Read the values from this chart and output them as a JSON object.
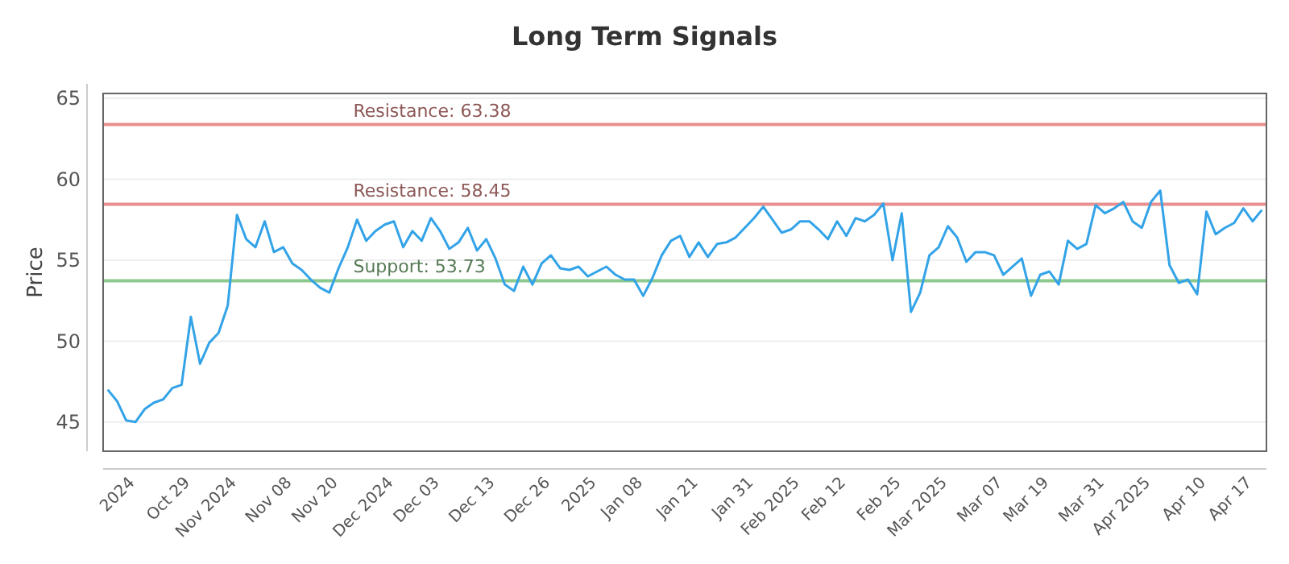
{
  "chart_data": {
    "type": "line",
    "title": "Long Term Signals",
    "ylabel": "Price",
    "categories": [
      null,
      null,
      null,
      "2024",
      null,
      null,
      null,
      null,
      null,
      "Oct 29",
      null,
      null,
      null,
      null,
      "Nov 2024",
      null,
      null,
      null,
      null,
      null,
      "Nov 08",
      null,
      null,
      null,
      null,
      "Nov 20",
      null,
      null,
      null,
      null,
      null,
      "Dec 2024",
      null,
      null,
      null,
      null,
      "Dec 03",
      null,
      null,
      null,
      null,
      null,
      "Dec 13",
      null,
      null,
      null,
      null,
      null,
      "Dec 26",
      null,
      null,
      null,
      null,
      "2025",
      null,
      null,
      null,
      null,
      "Jan 08",
      null,
      null,
      null,
      null,
      null,
      "Jan 21",
      null,
      null,
      null,
      null,
      null,
      "Jan 31",
      null,
      null,
      null,
      null,
      "Feb 2025",
      null,
      null,
      null,
      null,
      "Feb 12",
      null,
      null,
      null,
      null,
      null,
      "Feb 25",
      null,
      null,
      null,
      null,
      "Mar 2025",
      null,
      null,
      null,
      null,
      null,
      "Mar 07",
      null,
      null,
      null,
      null,
      "Mar 19",
      null,
      null,
      null,
      null,
      null,
      "Mar 31",
      null,
      null,
      null,
      null,
      "Apr 2025",
      null,
      null,
      null,
      null,
      null,
      "Apr 10",
      null,
      null,
      null,
      null,
      "Apr 17",
      null
    ],
    "series": [
      {
        "color": "#33a3e8",
        "values": [
          47.0,
          46.3,
          45.1,
          45.0,
          45.8,
          46.2,
          46.4,
          47.1,
          47.3,
          51.5,
          48.6,
          49.9,
          50.5,
          52.2,
          57.8,
          56.3,
          55.8,
          57.4,
          55.5,
          55.8,
          54.8,
          54.4,
          53.8,
          53.3,
          53.0,
          54.5,
          55.8,
          57.5,
          56.2,
          56.8,
          57.2,
          57.4,
          55.8,
          56.8,
          56.2,
          57.6,
          56.8,
          55.7,
          56.1,
          57.0,
          55.6,
          56.3,
          55.1,
          53.5,
          53.1,
          54.6,
          53.5,
          54.8,
          55.3,
          54.5,
          54.4,
          54.6,
          54.0,
          54.3,
          54.6,
          54.1,
          53.8,
          53.8,
          52.8,
          53.9,
          55.3,
          56.2,
          56.5,
          55.2,
          56.1,
          55.2,
          56.0,
          56.1,
          56.4,
          57.0,
          57.6,
          58.3,
          57.5,
          56.7,
          56.9,
          57.4,
          57.4,
          56.9,
          56.3,
          57.4,
          56.5,
          57.6,
          57.4,
          57.8,
          58.5,
          55.0,
          57.9,
          51.8,
          53.0,
          55.3,
          55.8,
          57.1,
          56.4,
          54.9,
          55.5,
          55.5,
          55.3,
          54.1,
          54.6,
          55.1,
          52.8,
          54.1,
          54.3,
          53.5,
          56.2,
          55.7,
          56.0,
          58.4,
          57.9,
          58.2,
          58.6,
          57.4,
          57.0,
          58.6,
          59.3,
          54.7,
          53.6,
          53.8,
          52.9,
          58.0,
          56.6,
          57.0,
          57.3,
          58.2,
          57.4,
          58.1
        ]
      }
    ],
    "ylim": [
      43.2,
      65.3
    ],
    "yticks": [
      45,
      50,
      55,
      60,
      65
    ],
    "grid": "y",
    "marker": "none",
    "line_style": "solid",
    "ref_lines": [
      {
        "axis": "y",
        "value": 63.38,
        "label": "Resistance: 63.38",
        "color": "#e8908f"
      },
      {
        "axis": "y",
        "value": 58.45,
        "label": "Resistance: 58.45",
        "color": "#e8908f"
      },
      {
        "axis": "y",
        "value": 53.73,
        "label": "Support: 53.73",
        "color": "#8cc98c"
      }
    ]
  }
}
